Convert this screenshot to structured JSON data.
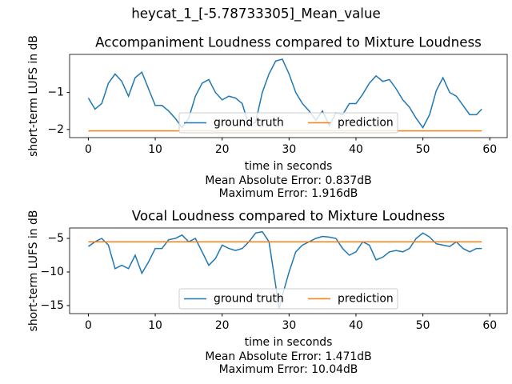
{
  "title": "heycat_1_[-5.78733305]_Mean_value",
  "chart_data": [
    {
      "type": "line",
      "title": "Accompaniment Loudness compared to Mixture Loudness",
      "x_label": "time in seconds",
      "y_label": "short-term LUFS in dB",
      "notes": [
        "Mean Absolute Error: 0.837dB",
        "Maximum Error: 1.916dB"
      ],
      "xlim": [
        -2.8,
        62.6
      ],
      "ylim": [
        -2.22,
        0.03
      ],
      "xticks": [
        0,
        10,
        20,
        30,
        40,
        50,
        60
      ],
      "yticks": [
        {
          "value": -1,
          "label": "−1"
        },
        {
          "value": -2,
          "label": "−2"
        }
      ],
      "legend": "lower center",
      "legend_columns": 2,
      "series": [
        {
          "name": "ground truth",
          "color": "#1f77b4",
          "x": [
            0,
            1,
            2,
            3,
            4,
            5,
            6,
            7,
            8,
            9,
            10,
            11,
            12,
            13,
            14,
            15,
            16,
            17,
            18,
            19,
            20,
            21,
            22,
            23,
            24,
            25,
            26,
            27,
            28,
            29,
            30,
            31,
            32,
            33,
            34,
            35,
            36,
            37,
            38,
            39,
            40,
            41,
            42,
            43,
            44,
            45,
            46,
            47,
            48,
            49,
            50,
            51,
            52,
            53,
            54,
            55,
            56,
            57,
            58,
            58.8
          ],
          "values": [
            -1.15,
            -1.45,
            -1.3,
            -0.75,
            -0.5,
            -0.7,
            -1.1,
            -0.6,
            -0.45,
            -0.9,
            -1.35,
            -1.35,
            -1.5,
            -1.7,
            -1.95,
            -1.7,
            -1.1,
            -0.75,
            -0.65,
            -1.0,
            -1.2,
            -1.1,
            -1.15,
            -1.3,
            -1.9,
            -1.8,
            -1.0,
            -0.5,
            -0.15,
            -0.1,
            -0.5,
            -1.0,
            -1.3,
            -1.5,
            -1.75,
            -1.5,
            -1.9,
            -1.55,
            -1.6,
            -1.3,
            -1.3,
            -1.05,
            -0.75,
            -0.55,
            -0.7,
            -0.65,
            -0.9,
            -1.2,
            -1.4,
            -1.7,
            -1.95,
            -1.6,
            -0.95,
            -0.6,
            -1.0,
            -1.1,
            -1.35,
            -1.6,
            -1.6,
            -1.45
          ]
        },
        {
          "name": "prediction",
          "color": "#ff7f0e",
          "x": [
            0,
            58.8
          ],
          "values": [
            -2.04,
            -2.04
          ]
        }
      ]
    },
    {
      "type": "line",
      "title": "Vocal Loudness compared to Mixture Loudness",
      "x_label": "time in seconds",
      "y_label": "short-term LUFS in dB",
      "notes": [
        "Mean Absolute Error: 1.471dB",
        "Maximum Error: 10.04dB"
      ],
      "xlim": [
        -2.8,
        62.6
      ],
      "ylim": [
        -16.2,
        -3.45
      ],
      "xticks": [
        0,
        10,
        20,
        30,
        40,
        50,
        60
      ],
      "yticks": [
        {
          "value": -5,
          "label": "−5"
        },
        {
          "value": -10,
          "label": "−10"
        },
        {
          "value": -15,
          "label": "−15"
        }
      ],
      "legend": "lower center",
      "legend_columns": 2,
      "series": [
        {
          "name": "ground truth",
          "color": "#1f77b4",
          "x": [
            0,
            1,
            2,
            3,
            4,
            5,
            6,
            7,
            8,
            9,
            10,
            11,
            12,
            13,
            14,
            15,
            16,
            17,
            18,
            19,
            20,
            21,
            22,
            23,
            24,
            25,
            26,
            27,
            28,
            28.5,
            29,
            30,
            31,
            32,
            33,
            34,
            35,
            36,
            37,
            38,
            39,
            40,
            41,
            42,
            43,
            44,
            45,
            46,
            47,
            48,
            49,
            50,
            51,
            52,
            53,
            54,
            55,
            56,
            57,
            58,
            58.8
          ],
          "values": [
            -6.2,
            -5.5,
            -5.0,
            -6.0,
            -9.5,
            -9.0,
            -9.5,
            -7.5,
            -10.2,
            -8.5,
            -6.5,
            -6.5,
            -5.2,
            -5.0,
            -4.5,
            -5.5,
            -5.0,
            -7.0,
            -9.0,
            -8.0,
            -6.0,
            -6.5,
            -6.8,
            -6.5,
            -5.5,
            -4.2,
            -4.0,
            -5.5,
            -12.0,
            -15.5,
            -13.5,
            -10,
            -7,
            -6,
            -5.5,
            -5,
            -4.7,
            -4.8,
            -5,
            -6.5,
            -7.5,
            -7.0,
            -5.5,
            -6.0,
            -8.2,
            -7.8,
            -7.0,
            -6.8,
            -7.0,
            -6.5,
            -5,
            -4.2,
            -4.8,
            -5.8,
            -6,
            -6.2,
            -5.5,
            -6.5,
            -7,
            -6.5,
            -6.5
          ]
        },
        {
          "name": "prediction",
          "color": "#ff7f0e",
          "x": [
            0,
            58.8
          ],
          "values": [
            -5.5,
            -5.5
          ]
        }
      ]
    }
  ]
}
